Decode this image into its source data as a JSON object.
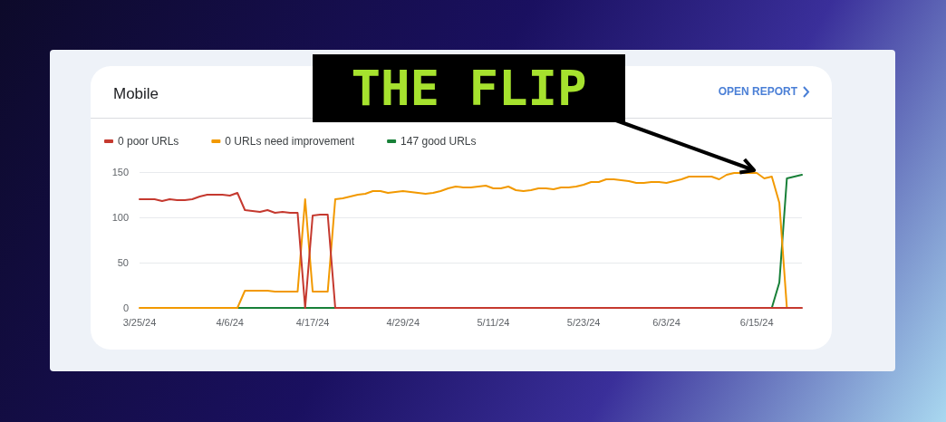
{
  "chart_data": {
    "type": "line",
    "title": "Mobile",
    "categories": [
      "3/25/24",
      null,
      null,
      null,
      null,
      null,
      null,
      null,
      null,
      null,
      null,
      null,
      "4/6/24",
      null,
      null,
      null,
      null,
      null,
      null,
      null,
      null,
      null,
      null,
      "4/17/24",
      null,
      null,
      null,
      null,
      null,
      null,
      null,
      null,
      null,
      null,
      null,
      "4/29/24",
      null,
      null,
      null,
      null,
      null,
      null,
      null,
      null,
      null,
      null,
      null,
      "5/11/24",
      null,
      null,
      null,
      null,
      null,
      null,
      null,
      null,
      null,
      null,
      null,
      "5/23/24",
      null,
      null,
      null,
      null,
      null,
      null,
      null,
      null,
      null,
      null,
      "6/3/24",
      null,
      null,
      null,
      null,
      null,
      null,
      null,
      null,
      null,
      null,
      null,
      "6/15/24",
      null,
      null,
      null,
      null,
      null,
      null
    ],
    "series": [
      {
        "name": "0 poor URLs",
        "color": "#c5392f",
        "values": [
          120,
          120,
          120,
          118,
          120,
          119,
          119,
          120,
          123,
          125,
          125,
          125,
          124,
          127,
          108,
          107,
          106,
          108,
          105,
          106,
          105,
          105,
          0,
          102,
          103,
          103,
          0,
          0,
          0,
          0,
          0,
          0,
          0,
          0,
          0,
          0,
          0,
          0,
          0,
          0,
          0,
          0,
          0,
          0,
          0,
          0,
          0,
          0,
          0,
          0,
          0,
          0,
          0,
          0,
          0,
          0,
          0,
          0,
          0,
          0,
          0,
          0,
          0,
          0,
          0,
          0,
          0,
          0,
          0,
          0,
          0,
          0,
          0,
          0,
          0,
          0,
          0,
          0,
          0,
          0,
          0,
          0,
          0,
          0,
          0,
          0,
          0,
          0,
          0
        ]
      },
      {
        "name": "0 URLs need improvement",
        "color": "#f29900",
        "values": [
          0,
          0,
          0,
          0,
          0,
          0,
          0,
          0,
          0,
          0,
          0,
          0,
          0,
          0,
          19,
          19,
          19,
          19,
          18,
          18,
          18,
          18,
          120,
          18,
          18,
          18,
          120,
          121,
          123,
          125,
          126,
          129,
          129,
          127,
          128,
          129,
          128,
          127,
          126,
          127,
          129,
          132,
          134,
          133,
          133,
          134,
          135,
          132,
          132,
          134,
          130,
          129,
          130,
          132,
          132,
          131,
          133,
          133,
          134,
          136,
          139,
          139,
          142,
          142,
          141,
          140,
          138,
          138,
          139,
          139,
          138,
          140,
          142,
          145,
          145,
          145,
          145,
          142,
          147,
          149,
          149,
          149,
          149,
          143,
          145,
          116,
          0,
          null,
          null
        ]
      },
      {
        "name": "147 good URLs",
        "color": "#188038",
        "values": [
          null,
          null,
          null,
          null,
          null,
          null,
          null,
          null,
          null,
          null,
          null,
          null,
          null,
          0,
          0,
          0,
          0,
          0,
          0,
          0,
          0,
          0,
          0,
          0,
          0,
          0,
          0,
          null,
          null,
          null,
          null,
          null,
          null,
          null,
          null,
          null,
          null,
          null,
          null,
          null,
          null,
          null,
          null,
          null,
          null,
          null,
          null,
          null,
          null,
          null,
          null,
          null,
          null,
          null,
          null,
          null,
          null,
          null,
          null,
          null,
          null,
          null,
          null,
          null,
          null,
          null,
          null,
          null,
          null,
          null,
          null,
          null,
          null,
          null,
          null,
          null,
          null,
          null,
          null,
          null,
          null,
          null,
          null,
          null,
          0,
          28,
          143,
          145,
          147
        ]
      }
    ],
    "ylim": [
      0,
      150
    ],
    "yticks": [
      0,
      50,
      100,
      150
    ],
    "grid": "y",
    "legend": "top left",
    "marker": "none",
    "line_style": "solid",
    "annotations": [
      {
        "text": "THE FLIP",
        "x": "6/15/24",
        "y": 149
      },
      "OPEN REPORT"
    ]
  }
}
